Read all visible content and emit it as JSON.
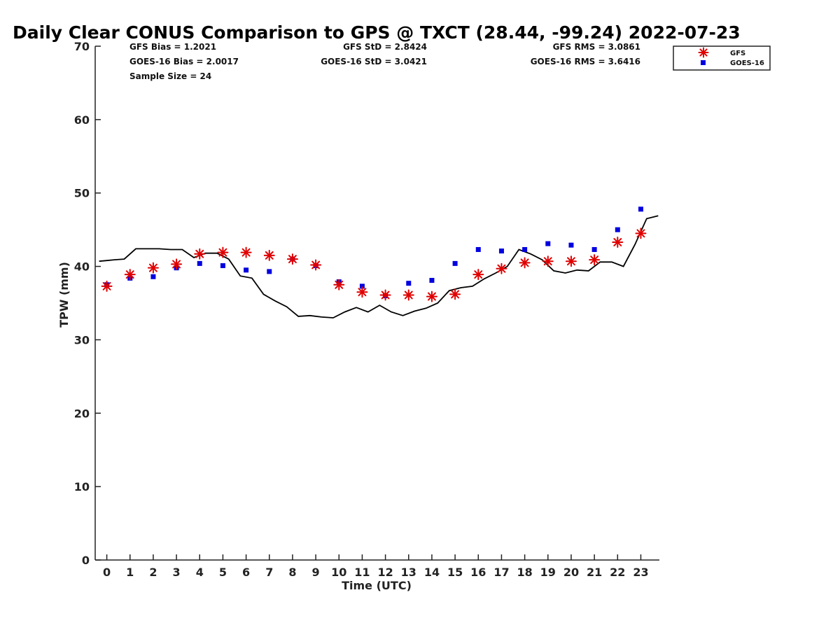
{
  "chart_data": {
    "type": "scatter",
    "title": "Daily Clear CONUS Comparison to GPS @ TXCT (28.44, -99.24) 2022-07-23",
    "xlabel": "Time (UTC)",
    "ylabel": "TPW (mm)",
    "xlim": [
      -0.5,
      23.8
    ],
    "ylim": [
      0,
      70
    ],
    "x_ticks": [
      0,
      1,
      2,
      3,
      4,
      5,
      6,
      7,
      8,
      9,
      10,
      11,
      12,
      13,
      14,
      15,
      16,
      17,
      18,
      19,
      20,
      21,
      22,
      23
    ],
    "y_ticks": [
      0,
      10,
      20,
      30,
      40,
      50,
      60,
      70
    ],
    "grid": false,
    "legend_position": "top-right, outside plot",
    "stats": {
      "gfs_bias": "GFS Bias = 1.2021",
      "goes_bias": "GOES-16 Bias = 2.0017",
      "sample_size": "Sample Size = 24",
      "gfs_std": "GFS StD = 2.8424",
      "goes_std": "GOES-16 StD = 3.0421",
      "gfs_rms": "GFS RMS = 3.0861",
      "goes_rms": "GOES-16 RMS = 3.6416"
    },
    "series": [
      {
        "name": "GFS",
        "marker": "asterisk",
        "color": "#e00000",
        "x": [
          0,
          1,
          2,
          3,
          4,
          5,
          6,
          7,
          8,
          9,
          10,
          11,
          12,
          13,
          14,
          15,
          16,
          17,
          18,
          19,
          20,
          21,
          22,
          23
        ],
        "values": [
          37.3,
          38.9,
          39.8,
          40.3,
          41.7,
          41.9,
          41.9,
          41.5,
          41.0,
          40.2,
          37.5,
          36.5,
          36.1,
          36.1,
          35.9,
          36.2,
          38.9,
          39.7,
          40.5,
          40.7,
          40.7,
          40.9,
          43.3,
          44.5
        ]
      },
      {
        "name": "GOES-16",
        "marker": "square",
        "color": "#0000e0",
        "x": [
          0,
          1,
          2,
          3,
          4,
          5,
          6,
          7,
          8,
          9,
          10,
          11,
          12,
          13,
          14,
          15,
          16,
          17,
          18,
          19,
          20,
          21,
          22,
          23
        ],
        "values": [
          37.5,
          38.4,
          38.6,
          39.8,
          40.4,
          40.1,
          39.5,
          39.3,
          41.0,
          40.1,
          37.9,
          37.3,
          36.0,
          37.7,
          38.1,
          40.4,
          42.3,
          42.1,
          42.3,
          43.1,
          42.9,
          42.3,
          45.0,
          47.8
        ]
      },
      {
        "marker": "line",
        "color": "#000000",
        "x": [
          -0.33,
          0,
          0.33,
          0.75,
          1.25,
          1.75,
          2.25,
          2.75,
          3.25,
          3.75,
          4.25,
          4.75,
          5.25,
          5.75,
          6.25,
          6.75,
          7.25,
          7.75,
          8.25,
          8.75,
          9.25,
          9.75,
          10.25,
          10.75,
          11.25,
          11.75,
          12.25,
          12.75,
          13.25,
          13.75,
          14.25,
          14.75,
          15.25,
          15.75,
          16.25,
          16.75,
          17.25,
          17.75,
          18.25,
          18.75,
          19.25,
          19.75,
          20.25,
          20.75,
          21.25,
          21.75,
          22.25,
          22.75,
          23.25,
          23.75
        ],
        "values": [
          40.7,
          40.8,
          40.9,
          41.0,
          42.4,
          42.4,
          42.4,
          42.3,
          42.3,
          41.2,
          41.8,
          41.8,
          41.0,
          38.7,
          38.4,
          36.2,
          35.3,
          34.5,
          33.2,
          33.3,
          33.1,
          33.0,
          33.8,
          34.4,
          33.8,
          34.7,
          33.8,
          33.3,
          33.9,
          34.3,
          35.0,
          36.7,
          37.1,
          37.3,
          38.3,
          39.1,
          40.0,
          42.3,
          41.7,
          40.9,
          39.4,
          39.1,
          39.5,
          39.4,
          40.6,
          40.6,
          40.0,
          43.0,
          46.5,
          46.9
        ]
      }
    ]
  }
}
